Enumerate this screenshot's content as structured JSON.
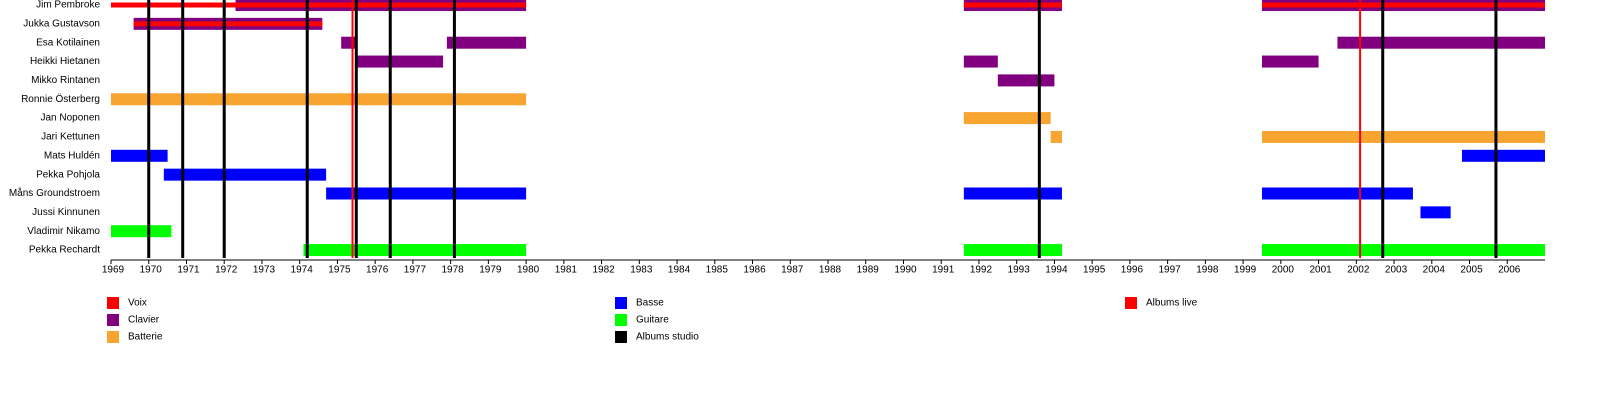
{
  "chart_data": {
    "type": "timeline",
    "categories": [
      "Jim Pembroke",
      "Jukka Gustavson",
      "Esa Kotilainen",
      "Heikki Hietanen",
      "Mikko Rintanen",
      "Ronnie Österberg",
      "Jan Noponen",
      "Jari Kettunen",
      "Mats Huldén",
      "Pekka Pohjola",
      "Måns Groundstroem",
      "Jussi Kinnunen",
      "Vladimir Nikamo",
      "Pekka Rechardt"
    ],
    "series": [
      {
        "name": "Voix",
        "color": "#ff0000",
        "values": [
          [
            [
              1969,
              1980
            ],
            [
              1991.6,
              1994.2
            ],
            [
              1999.5,
              2007
            ]
          ],
          [
            [
              1969.6,
              1974.6
            ]
          ],
          [],
          [],
          [],
          [],
          [],
          [],
          [],
          [],
          [],
          [],
          [],
          []
        ]
      },
      {
        "name": "Clavier",
        "color": "#800080",
        "values": [
          [
            [
              1972.3,
              1980
            ],
            [
              1991.6,
              1994.2
            ],
            [
              1999.5,
              2007
            ]
          ],
          [
            [
              1969.6,
              1974.6
            ]
          ],
          [
            [
              1975.1,
              1975.5
            ],
            [
              1977.9,
              1980
            ],
            [
              2001.5,
              2007
            ]
          ],
          [
            [
              1975.5,
              1977.8
            ],
            [
              1991.6,
              1992.5
            ],
            [
              1999.5,
              2001.0
            ]
          ],
          [
            [
              1992.5,
              1994.0
            ]
          ],
          [],
          [],
          [],
          [],
          [],
          [],
          [],
          [],
          []
        ]
      },
      {
        "name": "Batterie",
        "color": "#f7a530",
        "values": [
          [],
          [],
          [],
          [],
          [],
          [
            [
              1969,
              1980
            ]
          ],
          [
            [
              1991.6,
              1993.9
            ]
          ],
          [
            [
              1993.9,
              1994.2
            ],
            [
              1999.5,
              2007
            ]
          ],
          [],
          [],
          [],
          [],
          [],
          []
        ]
      },
      {
        "name": "Basse",
        "color": "#0000ff",
        "values": [
          [],
          [],
          [],
          [],
          [],
          [],
          [],
          [],
          [
            [
              1969,
              1970.5
            ],
            [
              2004.8,
              2007
            ]
          ],
          [
            [
              1970.4,
              1974.7
            ]
          ],
          [
            [
              1974.7,
              1980
            ],
            [
              1991.6,
              1994.2
            ],
            [
              1999.5,
              2003.5
            ]
          ],
          [
            [
              2003.7,
              2004.5
            ]
          ],
          [],
          []
        ]
      },
      {
        "name": "Guitare",
        "color": "#00ff00",
        "values": [
          [],
          [],
          [],
          [],
          [],
          [],
          [],
          [],
          [],
          [],
          [],
          [],
          [
            [
              1969,
              1970.6
            ]
          ],
          [
            [
              1974.1,
              1980
            ],
            [
              1991.6,
              1994.2
            ],
            [
              1999.5,
              2007
            ]
          ]
        ]
      }
    ],
    "markers": [
      {
        "name": "Albums studio",
        "color": "#000000",
        "x": [
          1970.0,
          1970.9,
          1972.0,
          1974.2,
          1975.5,
          1976.4,
          1978.1,
          1993.6,
          2002.7,
          2005.7
        ]
      },
      {
        "name": "Albums live",
        "color": "#ff0000",
        "x": [
          1975.4,
          2002.1
        ]
      }
    ],
    "xlim": [
      1969,
      2007
    ],
    "xticks": [
      1969,
      1970,
      1971,
      1972,
      1973,
      1974,
      1975,
      1976,
      1977,
      1978,
      1979,
      1980,
      1981,
      1982,
      1983,
      1984,
      1985,
      1986,
      1987,
      1988,
      1989,
      1990,
      1991,
      1992,
      1993,
      1994,
      1995,
      1996,
      1997,
      1998,
      1999,
      2000,
      2001,
      2002,
      2003,
      2004,
      2005,
      2006
    ]
  }
}
